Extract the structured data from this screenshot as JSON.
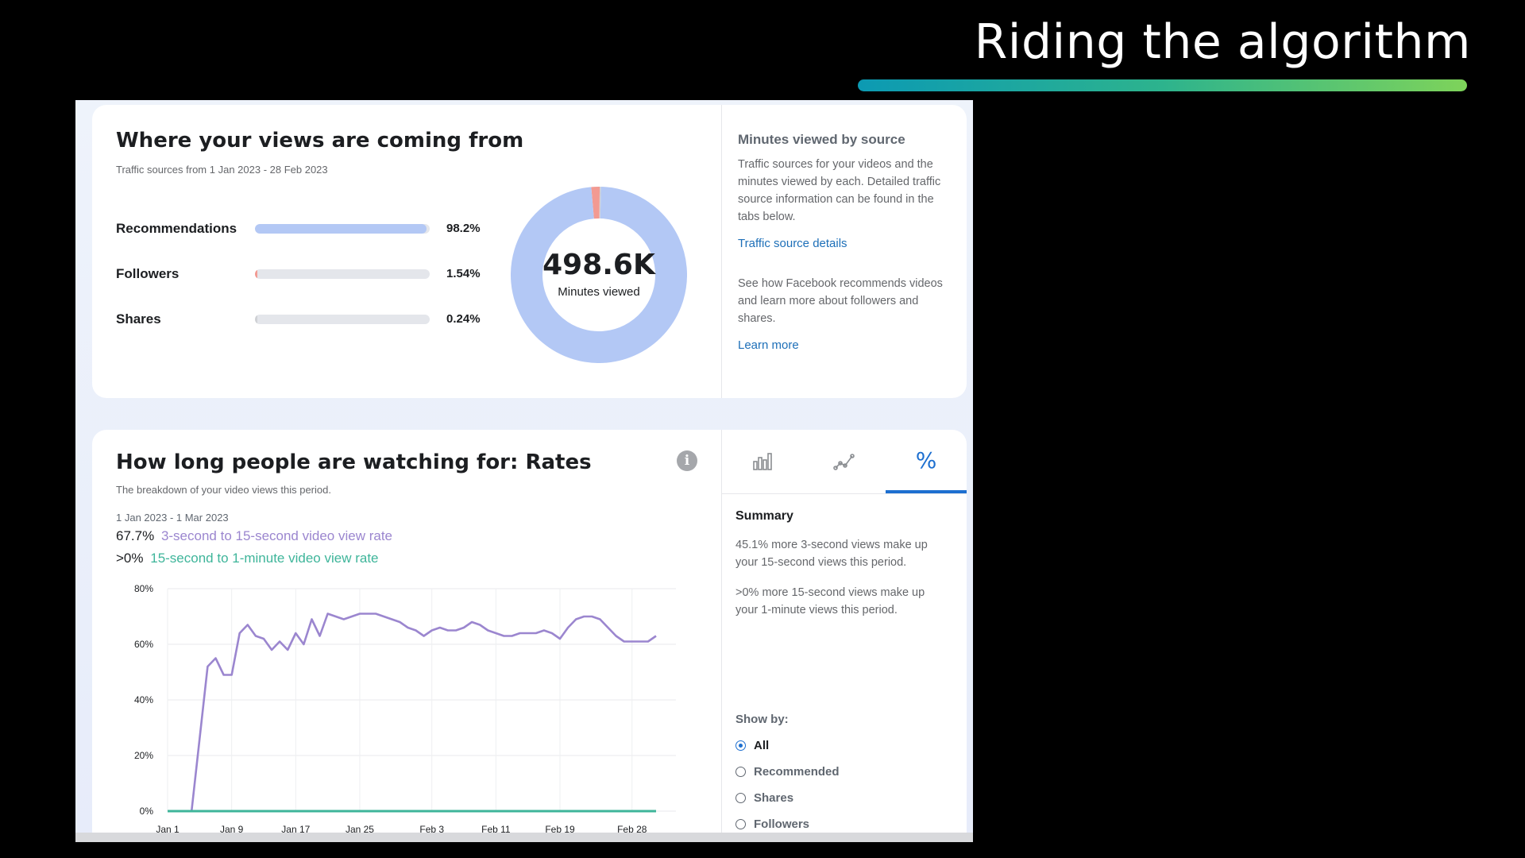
{
  "slide": {
    "title": "Riding the algorithm"
  },
  "sources_card": {
    "title": "Where your views are coming from",
    "subtitle": "Traffic sources from 1 Jan 2023 - 28 Feb 2023",
    "sources": [
      {
        "label": "Recommendations",
        "percent": "98.2%",
        "value": 98.2,
        "color": "#b3c8f5"
      },
      {
        "label": "Followers",
        "percent": "1.54%",
        "value": 1.54,
        "color": "#f29a92"
      },
      {
        "label": "Shares",
        "percent": "0.24%",
        "value": 0.24,
        "color": "#cfd1d5"
      }
    ],
    "donut_value": "498.6K",
    "donut_label": "Minutes viewed",
    "side": {
      "title": "Minutes viewed by source",
      "text1": "Traffic sources for your videos and the minutes viewed by each. Detailed traffic source information can be found in the tabs below.",
      "link1": "Traffic source details",
      "text2": "See how Facebook recommends videos and learn more about followers and shares.",
      "link2": "Learn more"
    }
  },
  "rates_card": {
    "title": "How long people are watching for: Rates",
    "subtitle": "The breakdown of your video views this period.",
    "date_range": "1 Jan 2023 - 1 Mar 2023",
    "metric1_value": "67.7%",
    "metric1_label": "3-second to 15-second video view rate",
    "metric2_value": ">0%",
    "metric2_label": "15-second to 1-minute video view rate",
    "metric1_color": "#9b86cf",
    "metric2_color": "#3eb59a",
    "tabs": [
      {
        "icon": "bar-chart-icon"
      },
      {
        "icon": "line-chart-icon"
      },
      {
        "icon": "percent-icon",
        "label": "%"
      }
    ],
    "summary_title": "Summary",
    "summary1": "45.1% more 3-second views make up your 15-second views this period.",
    "summary2": ">0% more 15-second views make up your 1-minute views this period.",
    "show_by_label": "Show by:",
    "show_by_options": [
      "All",
      "Recommended",
      "Shares",
      "Followers"
    ],
    "show_by_selected": "All"
  },
  "chart_data": {
    "type": "line",
    "x_ticks": [
      "Jan 1",
      "Jan 9",
      "Jan 17",
      "Jan 25",
      "Feb 3",
      "Feb 11",
      "Feb 19",
      "Feb 28"
    ],
    "y_ticks": [
      "80%",
      "60%",
      "40%",
      "20%",
      "0%"
    ],
    "ylim": [
      0,
      80
    ],
    "grid": true,
    "series": [
      {
        "name": "3-second to 15-second video view rate",
        "color": "#9b86cf",
        "values": [
          0,
          0,
          0,
          0,
          26,
          52,
          55,
          49,
          49,
          64,
          67,
          63,
          62,
          58,
          61,
          58,
          64,
          60,
          69,
          63,
          71,
          70,
          69,
          70,
          71,
          71,
          71,
          70,
          69,
          68,
          66,
          65,
          63,
          65,
          66,
          65,
          65,
          66,
          68,
          67,
          65,
          64,
          63,
          63,
          64,
          64,
          64,
          65,
          64,
          62,
          66,
          69,
          70,
          70,
          69,
          66,
          63,
          61,
          61,
          61,
          61,
          63
        ]
      },
      {
        "name": "15-second to 1-minute video view rate",
        "color": "#3eb59a",
        "values": [
          0,
          0,
          0,
          0,
          0,
          0,
          0,
          0,
          0,
          0,
          0,
          0,
          0,
          0,
          0,
          0,
          0,
          0,
          0,
          0,
          0,
          0,
          0,
          0,
          0,
          0,
          0,
          0,
          0,
          0,
          0,
          0,
          0,
          0,
          0,
          0,
          0,
          0,
          0,
          0,
          0,
          0,
          0,
          0,
          0,
          0,
          0,
          0,
          0,
          0,
          0,
          0,
          0,
          0,
          0,
          0,
          0,
          0,
          0,
          0,
          0,
          0
        ]
      }
    ]
  }
}
